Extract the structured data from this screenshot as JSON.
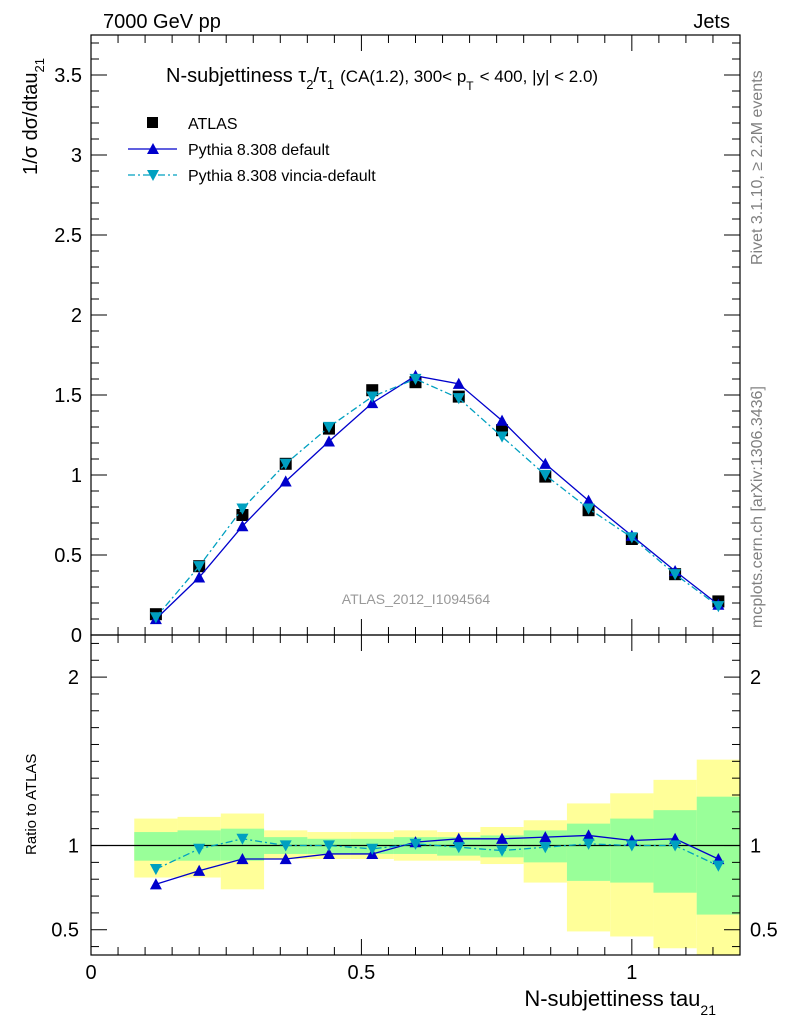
{
  "header": {
    "left": "7000 GeV pp",
    "right": "Jets"
  },
  "side_labels": {
    "rivet": "Rivet 3.1.10, ≥ 2.2M events",
    "mcplots": "mcplots.cern.ch [arXiv:1306.3436]"
  },
  "watermark": "ATLAS_2012_I1094564",
  "chart_data": [
    {
      "type": "line",
      "title_main": "N-subjettiness τ",
      "title_sub2": "2",
      "title_slash": "/τ",
      "title_sub1": "1",
      "title_rest": "(CA(1.2), 300< p",
      "title_subT": "T",
      "title_end": "< 400, |y| < 2.0)",
      "ylabel_main": "1/σ dσ/dtau",
      "ylabel_sub": "21",
      "xlim": [
        0,
        1.2
      ],
      "ylim": [
        0,
        3.75
      ],
      "yticks": [
        0,
        0.5,
        1,
        1.5,
        2,
        2.5,
        3,
        3.5
      ],
      "ytick_labels": [
        "0",
        "0.5",
        "1",
        "1.5",
        "2",
        "2.5",
        "3",
        "3.5"
      ],
      "legend": [
        "ATLAS",
        "Pythia 8.308 default",
        "Pythia 8.308 vincia-default"
      ],
      "legend_position": "top-left",
      "x": [
        0.12,
        0.2,
        0.28,
        0.36,
        0.44,
        0.52,
        0.6,
        0.68,
        0.76,
        0.84,
        0.92,
        1.0,
        1.08,
        1.16
      ],
      "series": [
        {
          "name": "ATLAS",
          "color": "#000000",
          "marker": "square",
          "values": [
            0.13,
            0.43,
            0.75,
            1.07,
            1.29,
            1.53,
            1.58,
            1.49,
            1.28,
            0.99,
            0.78,
            0.6,
            0.38,
            0.21
          ]
        },
        {
          "name": "Pythia 8.308 default",
          "color": "#0000cc",
          "marker": "triangle-up",
          "values": [
            0.1,
            0.36,
            0.68,
            0.96,
            1.21,
            1.45,
            1.62,
            1.57,
            1.34,
            1.07,
            0.84,
            0.62,
            0.4,
            0.19
          ]
        },
        {
          "name": "Pythia 8.308 vincia-default",
          "color": "#00a0c0",
          "marker": "triangle-down",
          "values": [
            0.11,
            0.43,
            0.79,
            1.07,
            1.3,
            1.49,
            1.6,
            1.48,
            1.24,
            1.0,
            0.79,
            0.61,
            0.38,
            0.18
          ]
        }
      ]
    },
    {
      "type": "line",
      "ylabel": "Ratio to ATLAS",
      "xlabel_main": "N-subjettiness tau",
      "xlabel_sub": "21",
      "xlim": [
        0,
        1.2
      ],
      "ylim": [
        0.35,
        2.25
      ],
      "yticks": [
        0.5,
        1,
        2
      ],
      "ytick_labels": [
        "0.5",
        "1",
        "2"
      ],
      "xticks": [
        0,
        0.5,
        1
      ],
      "xtick_labels": [
        "0",
        "0.5",
        "1"
      ],
      "bin_edges": [
        0.08,
        0.16,
        0.24,
        0.32,
        0.4,
        0.48,
        0.56,
        0.64,
        0.72,
        0.8,
        0.88,
        0.96,
        1.04,
        1.12,
        1.2
      ],
      "band_yellow": {
        "lo": [
          0.81,
          0.81,
          0.74,
          0.92,
          0.92,
          0.92,
          0.91,
          0.91,
          0.89,
          0.78,
          0.49,
          0.46,
          0.39,
          0.31
        ],
        "hi": [
          1.16,
          1.17,
          1.19,
          1.09,
          1.08,
          1.08,
          1.09,
          1.08,
          1.11,
          1.15,
          1.25,
          1.31,
          1.39,
          1.51
        ]
      },
      "band_green": {
        "lo": [
          0.91,
          0.91,
          0.91,
          0.95,
          0.95,
          0.95,
          0.95,
          0.94,
          0.93,
          0.9,
          0.79,
          0.78,
          0.72,
          0.59
        ],
        "hi": [
          1.08,
          1.09,
          1.1,
          1.05,
          1.04,
          1.04,
          1.05,
          1.05,
          1.06,
          1.09,
          1.13,
          1.16,
          1.21,
          1.29
        ]
      },
      "x": [
        0.12,
        0.2,
        0.28,
        0.36,
        0.44,
        0.52,
        0.6,
        0.68,
        0.76,
        0.84,
        0.92,
        1.0,
        1.08,
        1.16
      ],
      "series": [
        {
          "name": "Pythia 8.308 default",
          "color": "#0000cc",
          "marker": "triangle-up",
          "values": [
            0.77,
            0.85,
            0.92,
            0.92,
            0.95,
            0.95,
            1.02,
            1.04,
            1.04,
            1.05,
            1.06,
            1.03,
            1.04,
            0.92
          ]
        },
        {
          "name": "Pythia 8.308 vincia-default",
          "color": "#00a0c0",
          "marker": "triangle-down",
          "values": [
            0.86,
            0.98,
            1.04,
            1.0,
            1.0,
            0.98,
            1.01,
            0.99,
            0.97,
            0.99,
            1.01,
            1.0,
            1.0,
            0.88
          ]
        }
      ]
    }
  ]
}
